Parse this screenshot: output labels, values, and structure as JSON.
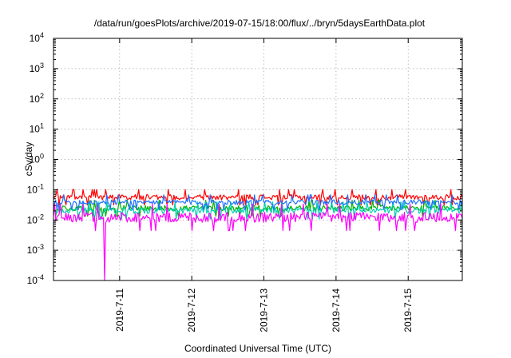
{
  "chart_data": {
    "type": "line",
    "title": "/data/run/goesPlots/archive/2019-07-15/18:00/flux/../bryn/5daysEarthData.plot",
    "xlabel": "Coordinated Universal Time (UTC)",
    "ylabel": "cSv/day",
    "yscale": "log",
    "ylim": [
      0.0001,
      10000
    ],
    "y_ticks": [
      {
        "value": 0.0001,
        "base": "10",
        "exp": "-4"
      },
      {
        "value": 0.001,
        "base": "10",
        "exp": "-3"
      },
      {
        "value": 0.01,
        "base": "10",
        "exp": "-2"
      },
      {
        "value": 0.1,
        "base": "10",
        "exp": "-1"
      },
      {
        "value": 1,
        "base": "10",
        "exp": "0"
      },
      {
        "value": 10,
        "base": "10",
        "exp": "1"
      },
      {
        "value": 100,
        "base": "10",
        "exp": "2"
      },
      {
        "value": 1000,
        "base": "10",
        "exp": "3"
      },
      {
        "value": 10000,
        "base": "10",
        "exp": "4"
      }
    ],
    "xlim": [
      "2019-07-10T02:00",
      "2019-07-15T18:00"
    ],
    "x_ticks": [
      {
        "value": "2019-07-11T00:00",
        "label": "2019-7-11"
      },
      {
        "value": "2019-07-12T00:00",
        "label": "2019-7-12"
      },
      {
        "value": "2019-07-13T00:00",
        "label": "2019-7-13"
      },
      {
        "value": "2019-07-14T00:00",
        "label": "2019-7-14"
      },
      {
        "value": "2019-07-15T00:00",
        "label": "2019-7-15"
      }
    ],
    "grid": true,
    "series": [
      {
        "color": "#ff0000",
        "typical_range": [
          0.035,
          0.09
        ]
      },
      {
        "color": "#00b000",
        "typical_range": [
          0.015,
          0.04
        ]
      },
      {
        "color": "#00d0b0",
        "typical_range": [
          0.012,
          0.035
        ]
      },
      {
        "color": "#1f6fff",
        "typical_range": [
          0.025,
          0.06
        ]
      },
      {
        "color": "#ff00ff",
        "typical_range": [
          0.005,
          0.03
        ]
      }
    ],
    "annotations": [
      {
        "series": 4,
        "at": "2019-07-10T19:00",
        "min_value": 0.0001
      }
    ]
  }
}
